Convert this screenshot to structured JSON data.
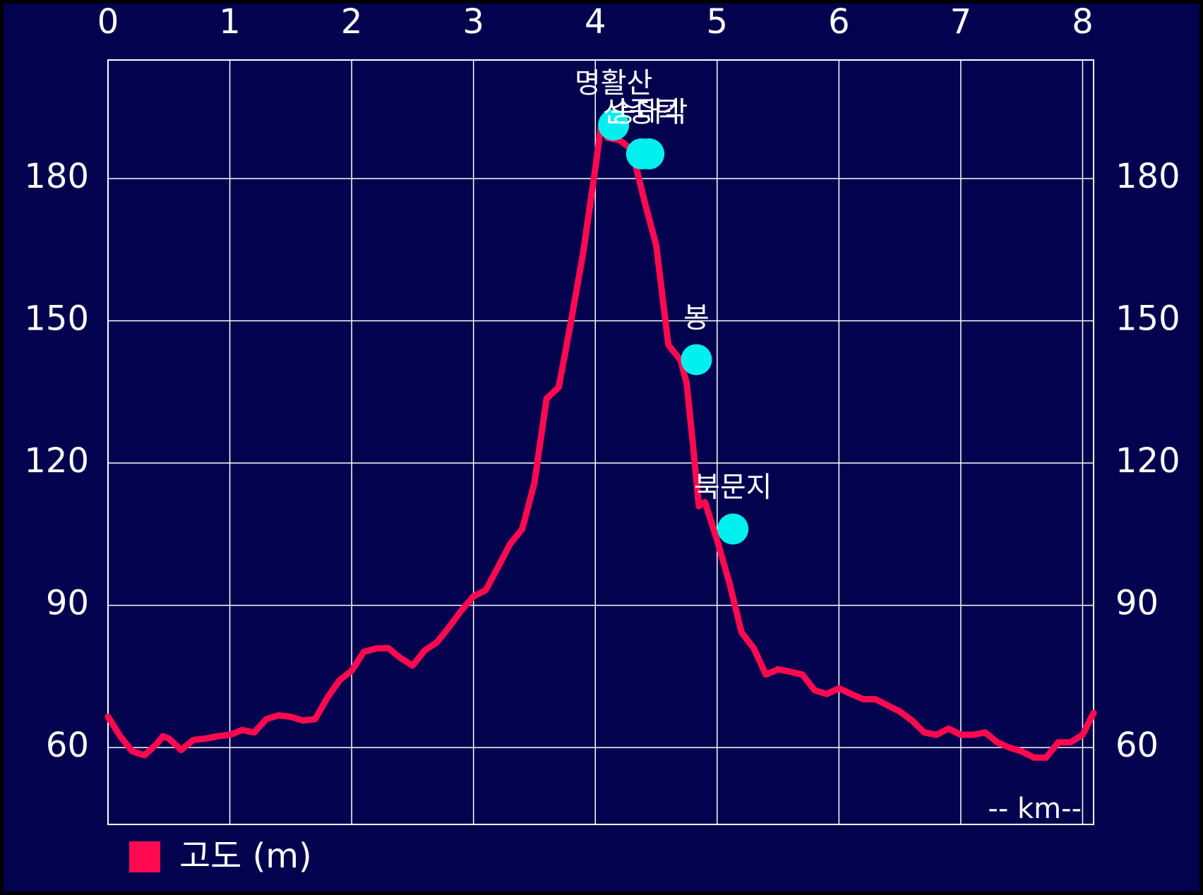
{
  "chart_data": {
    "type": "line",
    "x_label": "-- km--",
    "x": [
      0,
      0.1,
      0.2,
      0.3,
      0.4,
      0.45,
      0.5,
      0.6,
      0.7,
      0.8,
      0.9,
      1.0,
      1.1,
      1.2,
      1.3,
      1.4,
      1.5,
      1.6,
      1.7,
      1.8,
      1.9,
      2.0,
      2.1,
      2.2,
      2.3,
      2.4,
      2.5,
      2.6,
      2.7,
      2.8,
      2.9,
      3.0,
      3.1,
      3.2,
      3.3,
      3.4,
      3.5,
      3.6,
      3.7,
      3.8,
      3.9,
      4.0,
      4.05,
      4.1,
      4.2,
      4.3,
      4.4,
      4.5,
      4.6,
      4.7,
      4.75,
      4.8,
      4.85,
      4.9,
      5.0,
      5.1,
      5.2,
      5.3,
      5.4,
      5.5,
      5.6,
      5.7,
      5.8,
      5.9,
      6.0,
      6.1,
      6.2,
      6.3,
      6.4,
      6.5,
      6.6,
      6.7,
      6.8,
      6.9,
      7.0,
      7.1,
      7.2,
      7.3,
      7.4,
      7.5,
      7.6,
      7.7,
      7.8,
      7.9,
      8.0,
      8.09
    ],
    "series": [
      {
        "name": "고도 (m)",
        "color": "#ff0a50",
        "values": [
          66.5,
          62.4,
          59.2,
          58.4,
          60.8,
          62.4,
          61.9,
          59.5,
          61.6,
          61.9,
          62.4,
          62.7,
          63.7,
          63.2,
          66,
          66.8,
          66.5,
          65.7,
          66,
          70.5,
          74.2,
          76.2,
          80.2,
          80.9,
          81,
          78.9,
          77.3,
          80.5,
          82.2,
          85.4,
          88.9,
          91.9,
          93.2,
          98,
          102.9,
          106.1,
          115.8,
          133.6,
          136,
          149.8,
          164.3,
          182.1,
          191.8,
          188.6,
          188.1,
          186.1,
          175.6,
          165.9,
          144.9,
          141.7,
          136.8,
          124.3,
          110.9,
          111.8,
          103.7,
          94.8,
          84.3,
          81,
          75.4,
          76.5,
          76,
          75.4,
          72.1,
          71.3,
          72.5,
          71.3,
          70.2,
          70.2,
          68.9,
          67.6,
          65.7,
          63.2,
          62.7,
          64,
          62.7,
          62.7,
          63.2,
          61.1,
          60,
          59.2,
          57.9,
          57.9,
          61.1,
          61.1,
          62.7,
          67.3
        ]
      }
    ],
    "points": {
      "color": "#00f0f0",
      "labels": [
        "명활산",
        "산중턱",
        "송대각",
        "봉",
        "북문지"
      ],
      "x": [
        4.15,
        4.38,
        4.44,
        4.83,
        5.13
      ],
      "values": [
        191.3,
        185.2,
        185.2,
        141.8,
        106.1
      ]
    },
    "xlim": [
      0,
      8.09
    ],
    "xticks": [
      0,
      1,
      2,
      3,
      4,
      5,
      6,
      7,
      8
    ],
    "ylim": [
      43.8,
      205
    ],
    "yticks": [
      60,
      90,
      120,
      150,
      180
    ],
    "grid": true,
    "legend": "bottom-left"
  }
}
